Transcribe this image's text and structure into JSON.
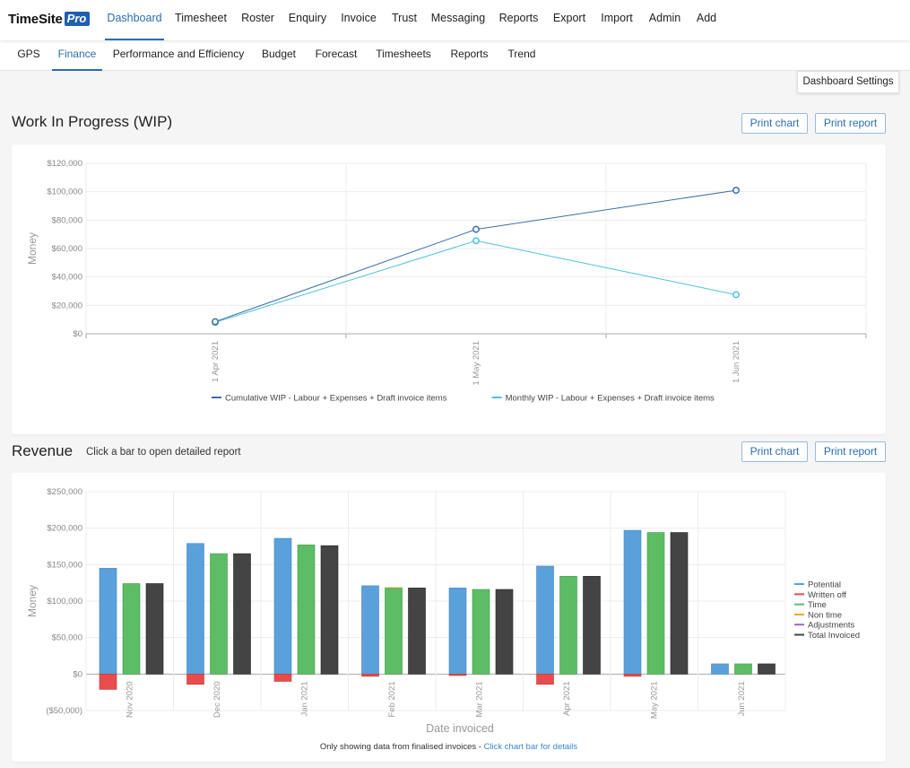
{
  "app": {
    "name": "TimeSite",
    "badge": "Pro"
  },
  "nav": {
    "items": [
      "Dashboard",
      "Timesheet",
      "Roster",
      "Enquiry",
      "Invoice",
      "Trust",
      "Messaging",
      "Reports",
      "Export",
      "Import",
      "Admin",
      "Add"
    ],
    "active": "Dashboard"
  },
  "subnav": {
    "items": [
      "GPS",
      "Finance",
      "Performance and Efficiency",
      "Budget",
      "Forecast",
      "Timesheets",
      "Reports",
      "Trend"
    ],
    "active": "Finance"
  },
  "dashboard_settings_label": "Dashboard Settings",
  "wip": {
    "title": "Work In Progress (WIP)",
    "print_chart": "Print chart",
    "print_report": "Print report"
  },
  "revenue": {
    "title": "Revenue",
    "subtitle": "Click a bar to open detailed report",
    "print_chart": "Print chart",
    "print_report": "Print report",
    "footnote_text": "Only showing data from finalised invoices - ",
    "footnote_link": "Click chart bar for details"
  },
  "chart_data": [
    {
      "type": "line",
      "ylabel": "Money",
      "xlabel": "",
      "ylim": [
        0,
        120000
      ],
      "yticks": [
        "$0",
        "$20,000",
        "$40,000",
        "$60,000",
        "$80,000",
        "$100,000",
        "$120,000"
      ],
      "x": [
        "1 Apr 2021",
        "1 May 2021",
        "1 Jun 2021"
      ],
      "series": [
        {
          "name": "Cumulative WIP - Labour + Expenses + Draft invoice items",
          "color": "#3a6fa8",
          "values": [
            8500,
            73500,
            101000
          ]
        },
        {
          "name": "Monthly WIP - Labour + Expenses + Draft invoice items",
          "color": "#4cc2dd",
          "values": [
            8000,
            65500,
            27500
          ]
        }
      ],
      "grid": true,
      "legend": "bottom"
    },
    {
      "type": "bar",
      "ylabel": "Money",
      "xlabel": "Date invoiced",
      "ylim": [
        -50000,
        250000
      ],
      "yticks": [
        "($50,000)",
        "$0",
        "$50,000",
        "$100,000",
        "$150,000",
        "$200,000",
        "$250,000"
      ],
      "categories": [
        "Nov 2020",
        "Dec 2020",
        "Jan 2021",
        "Feb 2021",
        "Mar 2021",
        "Apr 2021",
        "May 2021",
        "Jun 2021"
      ],
      "series": [
        {
          "name": "Potential",
          "color": "#5aa0da",
          "values": [
            145000,
            179000,
            186000,
            121000,
            118000,
            148000,
            197000,
            14000
          ]
        },
        {
          "name": "Written off",
          "color": "#e84c4c",
          "values": [
            -21000,
            -14000,
            -10000,
            -3000,
            -2000,
            -14000,
            -3000,
            0
          ]
        },
        {
          "name": "Time",
          "color": "#5cbd64",
          "values": [
            124000,
            165000,
            177000,
            118000,
            116000,
            134000,
            194000,
            14000
          ]
        },
        {
          "name": "Non time",
          "color": "#f0a22e",
          "values": [
            0,
            0,
            0,
            1000,
            0,
            0,
            0,
            0
          ]
        },
        {
          "name": "Adjustments",
          "color": "#9b6bc6",
          "values": [
            0,
            0,
            0,
            0,
            0,
            0,
            0,
            0
          ]
        },
        {
          "name": "Total Invoiced",
          "color": "#444444",
          "values": [
            124000,
            165000,
            176000,
            118000,
            116000,
            134000,
            194000,
            14000
          ]
        }
      ],
      "grid": true,
      "legend": "right"
    }
  ]
}
